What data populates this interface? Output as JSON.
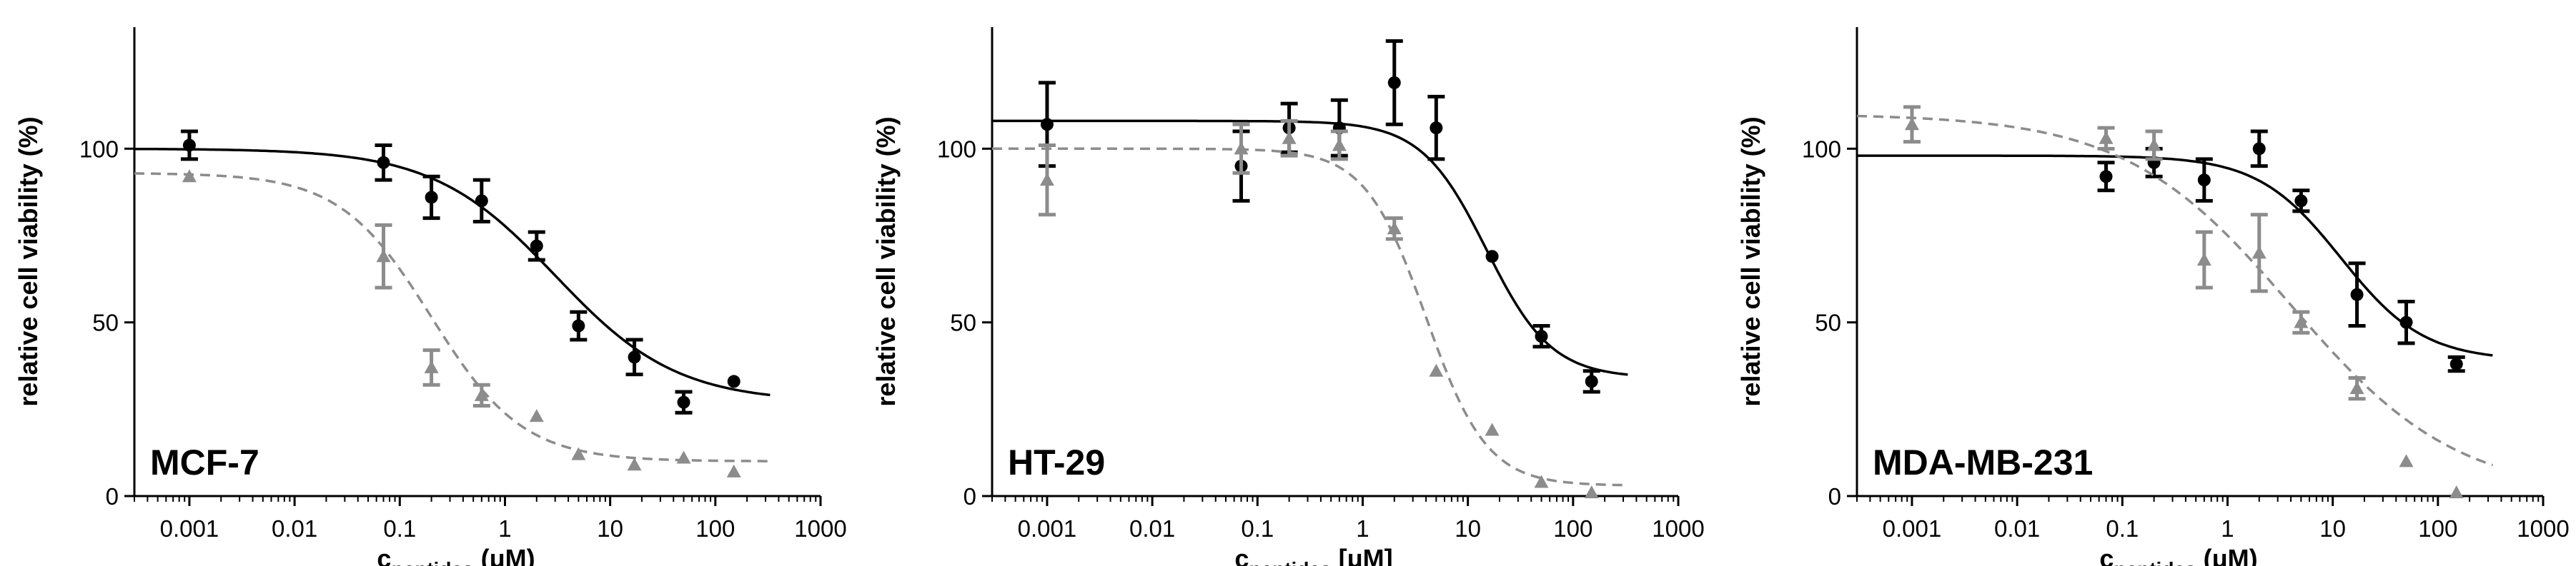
{
  "chart_data": [
    {
      "type": "scatter",
      "title": "MCF-7",
      "xlabel": {
        "main": "c",
        "sub": "peptides",
        "unit": "(μM)"
      },
      "ylabel": "relative cell viability (%)",
      "xscale": "log",
      "xlim": [
        0.0003,
        1000
      ],
      "ylim": [
        0,
        135
      ],
      "xticks": [
        0.001,
        0.01,
        0.1,
        1,
        10,
        100,
        1000
      ],
      "xtick_labels": [
        "0.001",
        "0.01",
        "0.1",
        "1",
        "10",
        "100",
        "1000"
      ],
      "yticks": [
        0,
        50,
        100
      ],
      "ytick_labels": [
        "0",
        "50",
        "100"
      ],
      "series": [
        {
          "name": "black circles",
          "marker": "circle",
          "color": "#000000",
          "line": "solid",
          "x": [
            0.001,
            0.07,
            0.2,
            0.6,
            2,
            5,
            17,
            50,
            150
          ],
          "y": [
            101,
            96,
            86,
            85,
            72,
            49,
            40,
            27,
            33
          ],
          "err": [
            4,
            5,
            6,
            6,
            4,
            4,
            5,
            3,
            0
          ],
          "fit": {
            "bottom": 27,
            "top": 100,
            "ic50": 3,
            "hill": 0.75
          }
        },
        {
          "name": "gray triangles",
          "marker": "triangle",
          "color": "#8c8c8c",
          "line": "dashed",
          "x": [
            0.001,
            0.07,
            0.2,
            0.6,
            2,
            5,
            17,
            50,
            150
          ],
          "y": [
            92,
            69,
            37,
            29,
            23,
            12,
            9,
            11,
            7
          ],
          "err": [
            0,
            9,
            5,
            3,
            0,
            0,
            0,
            0,
            0
          ],
          "fit": {
            "bottom": 10,
            "top": 93,
            "ic50": 0.2,
            "hill": 1.0
          }
        }
      ]
    },
    {
      "type": "scatter",
      "title": "HT-29",
      "xlabel": {
        "main": "c",
        "sub": "peptides",
        "unit": "[μM]"
      },
      "ylabel": "relative cell viability (%)",
      "xscale": "log",
      "xlim": [
        0.0003,
        1000
      ],
      "ylim": [
        0,
        135
      ],
      "xticks": [
        0.001,
        0.01,
        0.1,
        1,
        10,
        100,
        1000
      ],
      "xtick_labels": [
        "0.001",
        "0.01",
        "0.1",
        "1",
        "10",
        "100",
        "1000"
      ],
      "yticks": [
        0,
        50,
        100
      ],
      "ytick_labels": [
        "0",
        "50",
        "100"
      ],
      "series": [
        {
          "name": "black circles",
          "marker": "circle",
          "color": "#000000",
          "line": "solid",
          "x": [
            0.001,
            0.07,
            0.2,
            0.6,
            2,
            5,
            17,
            50,
            150
          ],
          "y": [
            107,
            95,
            106,
            106,
            119,
            106,
            69,
            46,
            33
          ],
          "err": [
            12,
            10,
            7,
            8,
            12,
            9,
            0,
            3,
            3
          ],
          "fit": {
            "bottom": 34,
            "top": 108,
            "ic50": 15,
            "hill": 1.4
          }
        },
        {
          "name": "gray triangles",
          "marker": "triangle",
          "color": "#8c8c8c",
          "line": "dashed",
          "x": [
            0.001,
            0.07,
            0.2,
            0.6,
            2,
            5,
            17,
            50,
            150
          ],
          "y": [
            91,
            100,
            103,
            101,
            77,
            36,
            19,
            4,
            1
          ],
          "err": [
            10,
            7,
            5,
            4,
            3,
            0,
            0,
            0,
            0
          ],
          "fit": {
            "bottom": 3,
            "top": 100,
            "ic50": 4,
            "hill": 1.5
          }
        }
      ]
    },
    {
      "type": "scatter",
      "title": "MDA-MB-231",
      "xlabel": {
        "main": "c",
        "sub": "peptides",
        "unit": "(μM)"
      },
      "ylabel": "relative cell viability (%)",
      "xscale": "log",
      "xlim": [
        0.0003,
        1000
      ],
      "ylim": [
        0,
        135
      ],
      "xticks": [
        0.001,
        0.01,
        0.1,
        1,
        10,
        100,
        1000
      ],
      "xtick_labels": [
        "0.001",
        "0.01",
        "0.1",
        "1",
        "10",
        "100",
        "1000"
      ],
      "yticks": [
        0,
        50,
        100
      ],
      "ytick_labels": [
        "0",
        "50",
        "100"
      ],
      "series": [
        {
          "name": "black circles",
          "marker": "circle",
          "color": "#000000",
          "line": "solid",
          "x": [
            0.07,
            0.2,
            0.6,
            2,
            5,
            17,
            50,
            150
          ],
          "y": [
            92,
            96,
            91,
            100,
            85,
            58,
            50,
            38
          ],
          "err": [
            4,
            4,
            6,
            5,
            3,
            9,
            6,
            2
          ],
          "fit": {
            "bottom": 39,
            "top": 98,
            "ic50": 12,
            "hill": 1.1
          }
        },
        {
          "name": "gray triangles",
          "marker": "triangle",
          "color": "#8c8c8c",
          "line": "dashed",
          "x": [
            0.001,
            0.07,
            0.2,
            0.6,
            2,
            5,
            17,
            50,
            150
          ],
          "y": [
            107,
            103,
            101,
            68,
            70,
            50,
            31,
            10,
            1
          ],
          "err": [
            5,
            3,
            4,
            8,
            11,
            3,
            3,
            0,
            0
          ],
          "fit": {
            "bottom": 0,
            "top": 110,
            "ic50": 4,
            "hill": 0.55
          }
        }
      ]
    }
  ]
}
